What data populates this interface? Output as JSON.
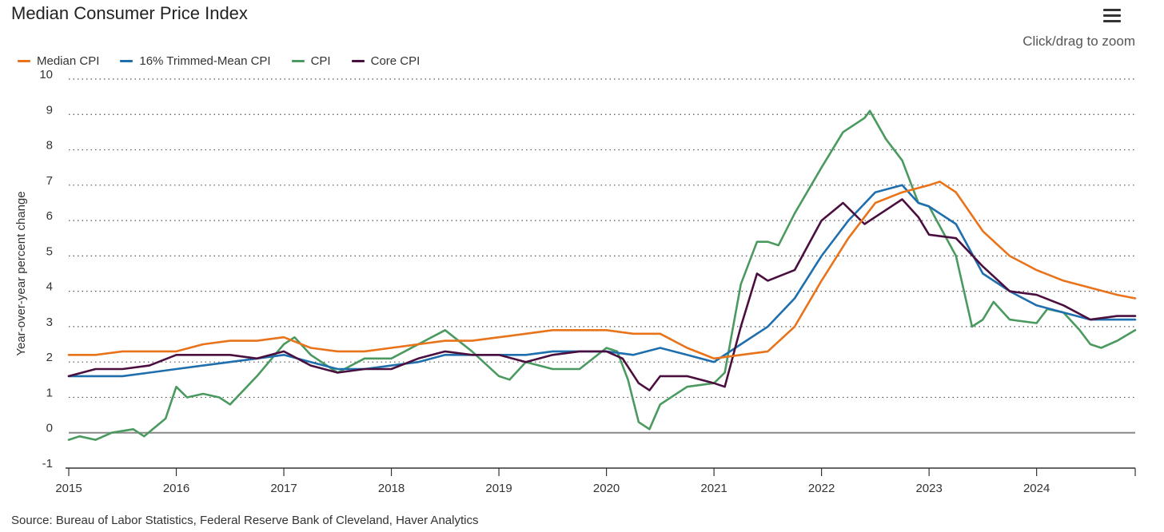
{
  "title": "Median Consumer Price Index",
  "zoom_hint": "Click/drag to zoom",
  "menu_icon": "hamburger-menu-icon",
  "source": "Source: Bureau of Labor Statistics, Federal Reserve Bank of Cleveland, Haver Analytics",
  "colors": {
    "median": "#e8731a",
    "trimmed": "#1f6fae",
    "cpi": "#4a9a60",
    "core": "#4b0f3f",
    "grid": "#555555",
    "zero_line": "#888888"
  },
  "chart_data": {
    "type": "line",
    "title": "Median Consumer Price Index",
    "xlabel": "",
    "ylabel": "Year-over-year percent change",
    "xlim": [
      2015.0,
      2024.917
    ],
    "ylim": [
      -1,
      10
    ],
    "x_ticks": [
      "2015",
      "2016",
      "2017",
      "2018",
      "2019",
      "2020",
      "2021",
      "2022",
      "2023",
      "2024"
    ],
    "y_ticks": [
      "-1",
      "0",
      "1",
      "2",
      "3",
      "4",
      "5",
      "6",
      "7",
      "8",
      "9",
      "10"
    ],
    "grid": "horizontal-dotted",
    "legend_position": "top-left",
    "series": [
      {
        "name": "Median CPI",
        "color": "#e8731a",
        "points": [
          [
            2015.0,
            2.2
          ],
          [
            2015.25,
            2.2
          ],
          [
            2015.5,
            2.3
          ],
          [
            2015.75,
            2.3
          ],
          [
            2016.0,
            2.3
          ],
          [
            2016.25,
            2.5
          ],
          [
            2016.5,
            2.6
          ],
          [
            2016.75,
            2.6
          ],
          [
            2017.0,
            2.7
          ],
          [
            2017.25,
            2.4
          ],
          [
            2017.5,
            2.3
          ],
          [
            2017.75,
            2.3
          ],
          [
            2018.0,
            2.4
          ],
          [
            2018.25,
            2.5
          ],
          [
            2018.5,
            2.6
          ],
          [
            2018.75,
            2.6
          ],
          [
            2019.0,
            2.7
          ],
          [
            2019.25,
            2.8
          ],
          [
            2019.5,
            2.9
          ],
          [
            2019.75,
            2.9
          ],
          [
            2020.0,
            2.9
          ],
          [
            2020.25,
            2.8
          ],
          [
            2020.5,
            2.8
          ],
          [
            2020.75,
            2.4
          ],
          [
            2021.0,
            2.1
          ],
          [
            2021.25,
            2.2
          ],
          [
            2021.5,
            2.3
          ],
          [
            2021.75,
            3.0
          ],
          [
            2022.0,
            4.3
          ],
          [
            2022.25,
            5.5
          ],
          [
            2022.5,
            6.5
          ],
          [
            2022.75,
            6.8
          ],
          [
            2023.0,
            7.0
          ],
          [
            2023.1,
            7.1
          ],
          [
            2023.25,
            6.8
          ],
          [
            2023.5,
            5.7
          ],
          [
            2023.75,
            5.0
          ],
          [
            2024.0,
            4.6
          ],
          [
            2024.25,
            4.3
          ],
          [
            2024.5,
            4.1
          ],
          [
            2024.75,
            3.9
          ],
          [
            2024.917,
            3.8
          ]
        ]
      },
      {
        "name": "16% Trimmed-Mean CPI",
        "color": "#1f6fae",
        "points": [
          [
            2015.0,
            1.6
          ],
          [
            2015.25,
            1.6
          ],
          [
            2015.5,
            1.6
          ],
          [
            2015.75,
            1.7
          ],
          [
            2016.0,
            1.8
          ],
          [
            2016.25,
            1.9
          ],
          [
            2016.5,
            2.0
          ],
          [
            2016.75,
            2.1
          ],
          [
            2017.0,
            2.2
          ],
          [
            2017.25,
            2.0
          ],
          [
            2017.5,
            1.8
          ],
          [
            2017.75,
            1.8
          ],
          [
            2018.0,
            1.9
          ],
          [
            2018.25,
            2.0
          ],
          [
            2018.5,
            2.2
          ],
          [
            2018.75,
            2.2
          ],
          [
            2019.0,
            2.2
          ],
          [
            2019.25,
            2.2
          ],
          [
            2019.5,
            2.3
          ],
          [
            2019.75,
            2.3
          ],
          [
            2020.0,
            2.3
          ],
          [
            2020.25,
            2.2
          ],
          [
            2020.5,
            2.4
          ],
          [
            2020.75,
            2.2
          ],
          [
            2021.0,
            2.0
          ],
          [
            2021.25,
            2.5
          ],
          [
            2021.5,
            3.0
          ],
          [
            2021.75,
            3.8
          ],
          [
            2022.0,
            5.0
          ],
          [
            2022.25,
            6.0
          ],
          [
            2022.5,
            6.8
          ],
          [
            2022.75,
            7.0
          ],
          [
            2022.9,
            6.5
          ],
          [
            2023.0,
            6.4
          ],
          [
            2023.25,
            5.9
          ],
          [
            2023.5,
            4.5
          ],
          [
            2023.75,
            4.0
          ],
          [
            2024.0,
            3.6
          ],
          [
            2024.25,
            3.4
          ],
          [
            2024.5,
            3.2
          ],
          [
            2024.75,
            3.2
          ],
          [
            2024.917,
            3.2
          ]
        ]
      },
      {
        "name": "CPI",
        "color": "#4a9a60",
        "points": [
          [
            2015.0,
            -0.2
          ],
          [
            2015.1,
            -0.1
          ],
          [
            2015.25,
            -0.2
          ],
          [
            2015.4,
            0.0
          ],
          [
            2015.6,
            0.1
          ],
          [
            2015.7,
            -0.1
          ],
          [
            2015.9,
            0.4
          ],
          [
            2016.0,
            1.3
          ],
          [
            2016.1,
            1.0
          ],
          [
            2016.25,
            1.1
          ],
          [
            2016.4,
            1.0
          ],
          [
            2016.5,
            0.8
          ],
          [
            2016.75,
            1.6
          ],
          [
            2017.0,
            2.5
          ],
          [
            2017.1,
            2.7
          ],
          [
            2017.25,
            2.2
          ],
          [
            2017.5,
            1.7
          ],
          [
            2017.75,
            2.1
          ],
          [
            2018.0,
            2.1
          ],
          [
            2018.25,
            2.5
          ],
          [
            2018.5,
            2.9
          ],
          [
            2018.75,
            2.3
          ],
          [
            2019.0,
            1.6
          ],
          [
            2019.1,
            1.5
          ],
          [
            2019.25,
            2.0
          ],
          [
            2019.5,
            1.8
          ],
          [
            2019.75,
            1.8
          ],
          [
            2020.0,
            2.4
          ],
          [
            2020.1,
            2.3
          ],
          [
            2020.2,
            1.5
          ],
          [
            2020.3,
            0.3
          ],
          [
            2020.4,
            0.1
          ],
          [
            2020.5,
            0.8
          ],
          [
            2020.75,
            1.3
          ],
          [
            2021.0,
            1.4
          ],
          [
            2021.1,
            1.7
          ],
          [
            2021.25,
            4.2
          ],
          [
            2021.4,
            5.4
          ],
          [
            2021.5,
            5.4
          ],
          [
            2021.6,
            5.3
          ],
          [
            2021.75,
            6.2
          ],
          [
            2022.0,
            7.5
          ],
          [
            2022.2,
            8.5
          ],
          [
            2022.4,
            8.9
          ],
          [
            2022.45,
            9.1
          ],
          [
            2022.6,
            8.3
          ],
          [
            2022.75,
            7.7
          ],
          [
            2022.9,
            6.5
          ],
          [
            2023.0,
            6.4
          ],
          [
            2023.25,
            5.0
          ],
          [
            2023.4,
            3.0
          ],
          [
            2023.5,
            3.2
          ],
          [
            2023.6,
            3.7
          ],
          [
            2023.75,
            3.2
          ],
          [
            2024.0,
            3.1
          ],
          [
            2024.1,
            3.5
          ],
          [
            2024.25,
            3.4
          ],
          [
            2024.4,
            2.9
          ],
          [
            2024.5,
            2.5
          ],
          [
            2024.6,
            2.4
          ],
          [
            2024.75,
            2.6
          ],
          [
            2024.917,
            2.9
          ]
        ]
      },
      {
        "name": "Core CPI",
        "color": "#4b0f3f",
        "points": [
          [
            2015.0,
            1.6
          ],
          [
            2015.25,
            1.8
          ],
          [
            2015.5,
            1.8
          ],
          [
            2015.75,
            1.9
          ],
          [
            2016.0,
            2.2
          ],
          [
            2016.25,
            2.2
          ],
          [
            2016.5,
            2.2
          ],
          [
            2016.75,
            2.1
          ],
          [
            2017.0,
            2.3
          ],
          [
            2017.25,
            1.9
          ],
          [
            2017.5,
            1.7
          ],
          [
            2017.75,
            1.8
          ],
          [
            2018.0,
            1.8
          ],
          [
            2018.25,
            2.1
          ],
          [
            2018.5,
            2.3
          ],
          [
            2018.75,
            2.2
          ],
          [
            2019.0,
            2.2
          ],
          [
            2019.25,
            2.0
          ],
          [
            2019.5,
            2.2
          ],
          [
            2019.75,
            2.3
          ],
          [
            2020.0,
            2.3
          ],
          [
            2020.15,
            2.1
          ],
          [
            2020.3,
            1.4
          ],
          [
            2020.4,
            1.2
          ],
          [
            2020.5,
            1.6
          ],
          [
            2020.75,
            1.6
          ],
          [
            2021.0,
            1.4
          ],
          [
            2021.1,
            1.3
          ],
          [
            2021.25,
            3.0
          ],
          [
            2021.4,
            4.5
          ],
          [
            2021.5,
            4.3
          ],
          [
            2021.75,
            4.6
          ],
          [
            2022.0,
            6.0
          ],
          [
            2022.2,
            6.5
          ],
          [
            2022.4,
            5.9
          ],
          [
            2022.6,
            6.3
          ],
          [
            2022.75,
            6.6
          ],
          [
            2022.9,
            6.1
          ],
          [
            2023.0,
            5.6
          ],
          [
            2023.25,
            5.5
          ],
          [
            2023.5,
            4.7
          ],
          [
            2023.75,
            4.0
          ],
          [
            2024.0,
            3.9
          ],
          [
            2024.25,
            3.6
          ],
          [
            2024.5,
            3.2
          ],
          [
            2024.75,
            3.3
          ],
          [
            2024.917,
            3.3
          ]
        ]
      }
    ]
  }
}
